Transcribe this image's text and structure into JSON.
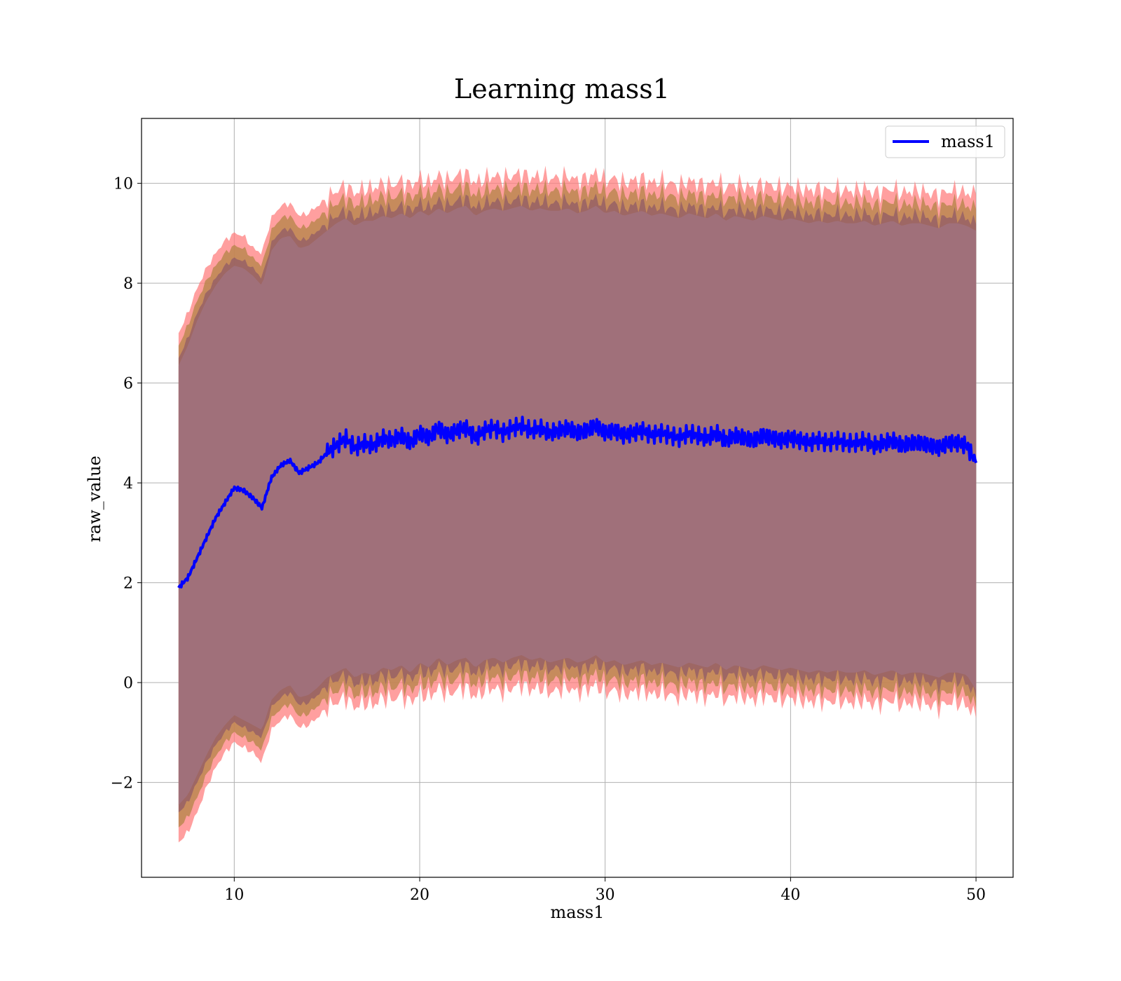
{
  "chart_data": {
    "type": "line",
    "title": "Learning mass1",
    "xlabel": "mass1",
    "ylabel": "raw_value",
    "xlim": [
      5,
      52
    ],
    "ylim": [
      -3.9,
      11.3
    ],
    "xticks": [
      10,
      20,
      30,
      40,
      50
    ],
    "yticks": [
      -2,
      0,
      2,
      4,
      6,
      8,
      10
    ],
    "grid": true,
    "legend": {
      "position": "top-right",
      "entries": [
        "mass1"
      ]
    },
    "colors": {
      "line": "#0000ff",
      "band_outer": "#ff7f7f",
      "band_mid": "#b8864b",
      "band_inner": "#7e4a6b",
      "band_core": "#a0707a"
    },
    "series": [
      {
        "name": "mass1",
        "x": [
          7,
          7.5,
          8,
          8.5,
          9,
          9.5,
          10,
          10.5,
          11,
          11.5,
          12,
          12.5,
          13,
          13.5,
          14,
          14.5,
          15,
          15.5,
          16,
          16.5,
          17,
          17.5,
          18,
          18.5,
          19,
          19.5,
          20,
          20.5,
          21,
          21.5,
          22,
          22.5,
          23,
          23.5,
          24,
          24.5,
          25,
          25.5,
          26,
          26.5,
          27,
          27.5,
          28,
          28.5,
          29,
          29.5,
          30,
          30.5,
          31,
          31.5,
          32,
          32.5,
          33,
          33.5,
          34,
          34.5,
          35,
          35.5,
          36,
          36.5,
          37,
          37.5,
          38,
          38.5,
          39,
          39.5,
          40,
          40.5,
          41,
          41.5,
          42,
          42.5,
          43,
          43.5,
          44,
          44.5,
          45,
          45.5,
          46,
          46.5,
          47,
          47.5,
          48,
          48.5,
          49,
          49.5,
          50
        ],
        "y": [
          1.9,
          2.1,
          2.5,
          2.9,
          3.3,
          3.6,
          3.9,
          3.85,
          3.7,
          3.5,
          4.1,
          4.35,
          4.45,
          4.2,
          4.3,
          4.4,
          4.6,
          4.75,
          4.9,
          4.7,
          4.8,
          4.75,
          4.9,
          4.85,
          4.95,
          4.8,
          5.0,
          4.9,
          5.1,
          4.95,
          5.05,
          5.1,
          4.9,
          5.05,
          5.1,
          5.0,
          5.1,
          5.15,
          5.05,
          5.1,
          5.0,
          5.05,
          5.1,
          5.0,
          5.05,
          5.15,
          5.0,
          5.05,
          4.95,
          5.0,
          5.05,
          4.95,
          5.0,
          4.95,
          4.9,
          5.0,
          4.95,
          4.9,
          5.0,
          4.85,
          4.95,
          4.9,
          4.85,
          4.95,
          4.9,
          4.85,
          4.9,
          4.85,
          4.8,
          4.85,
          4.8,
          4.85,
          4.8,
          4.8,
          4.85,
          4.75,
          4.8,
          4.85,
          4.75,
          4.8,
          4.8,
          4.75,
          4.7,
          4.8,
          4.8,
          4.75,
          4.4
        ]
      }
    ],
    "bands": {
      "outer_upper": [
        7.0,
        7.4,
        7.9,
        8.3,
        8.6,
        8.85,
        9.0,
        8.95,
        8.7,
        8.6,
        9.3,
        9.55,
        9.6,
        9.35,
        9.4,
        9.55,
        9.7,
        9.85,
        9.95,
        9.8,
        9.9,
        9.9,
        10.0,
        9.95,
        10.05,
        9.95,
        10.1,
        10.0,
        10.15,
        10.05,
        10.15,
        10.2,
        10.0,
        10.1,
        10.15,
        10.1,
        10.15,
        10.2,
        10.1,
        10.15,
        10.1,
        10.1,
        10.15,
        10.05,
        10.1,
        10.2,
        10.05,
        10.1,
        10.0,
        10.05,
        10.1,
        10.0,
        10.05,
        10.0,
        9.95,
        10.05,
        10.0,
        9.95,
        10.05,
        9.9,
        10.0,
        9.95,
        9.9,
        10.0,
        9.95,
        9.9,
        9.95,
        9.9,
        9.85,
        9.9,
        9.85,
        9.9,
        9.85,
        9.85,
        9.9,
        9.8,
        9.85,
        9.9,
        9.8,
        9.85,
        9.85,
        9.8,
        9.75,
        9.85,
        9.85,
        9.8,
        9.8
      ],
      "outer_lower": [
        -3.2,
        -3.0,
        -2.6,
        -2.1,
        -1.7,
        -1.4,
        -1.2,
        -1.3,
        -1.4,
        -1.6,
        -0.95,
        -0.75,
        -0.65,
        -0.9,
        -0.85,
        -0.7,
        -0.5,
        -0.4,
        -0.3,
        -0.5,
        -0.4,
        -0.45,
        -0.3,
        -0.35,
        -0.25,
        -0.4,
        -0.2,
        -0.3,
        -0.1,
        -0.25,
        -0.15,
        -0.1,
        -0.3,
        -0.15,
        -0.1,
        -0.2,
        -0.1,
        -0.05,
        -0.15,
        -0.1,
        -0.2,
        -0.15,
        -0.1,
        -0.2,
        -0.15,
        -0.05,
        -0.2,
        -0.15,
        -0.25,
        -0.2,
        -0.15,
        -0.25,
        -0.2,
        -0.25,
        -0.3,
        -0.2,
        -0.25,
        -0.3,
        -0.2,
        -0.35,
        -0.25,
        -0.3,
        -0.35,
        -0.25,
        -0.3,
        -0.35,
        -0.3,
        -0.35,
        -0.4,
        -0.35,
        -0.4,
        -0.35,
        -0.4,
        -0.4,
        -0.35,
        -0.45,
        -0.4,
        -0.35,
        -0.45,
        -0.4,
        -0.4,
        -0.45,
        -0.5,
        -0.4,
        -0.4,
        -0.45,
        -0.7
      ],
      "inner_upper": [
        6.5,
        6.9,
        7.4,
        7.8,
        8.1,
        8.35,
        8.5,
        8.45,
        8.3,
        8.1,
        8.8,
        9.05,
        9.1,
        8.85,
        8.9,
        9.05,
        9.2,
        9.35,
        9.45,
        9.3,
        9.4,
        9.4,
        9.5,
        9.45,
        9.55,
        9.45,
        9.6,
        9.5,
        9.65,
        9.55,
        9.65,
        9.7,
        9.5,
        9.6,
        9.65,
        9.6,
        9.65,
        9.7,
        9.6,
        9.65,
        9.6,
        9.6,
        9.65,
        9.55,
        9.6,
        9.7,
        9.55,
        9.6,
        9.5,
        9.55,
        9.6,
        9.5,
        9.55,
        9.5,
        9.45,
        9.55,
        9.5,
        9.45,
        9.55,
        9.4,
        9.5,
        9.45,
        9.4,
        9.5,
        9.45,
        9.4,
        9.45,
        9.4,
        9.35,
        9.4,
        9.35,
        9.4,
        9.35,
        9.35,
        9.4,
        9.3,
        9.35,
        9.4,
        9.3,
        9.35,
        9.35,
        9.3,
        9.25,
        9.35,
        9.35,
        9.3,
        9.2
      ],
      "inner_lower": [
        -2.6,
        -2.4,
        -2.0,
        -1.6,
        -1.25,
        -1.0,
        -0.8,
        -0.9,
        -1.0,
        -1.1,
        -0.5,
        -0.3,
        -0.2,
        -0.45,
        -0.4,
        -0.25,
        -0.05,
        0.05,
        0.15,
        -0.05,
        0.05,
        0.0,
        0.15,
        0.1,
        0.2,
        0.05,
        0.25,
        0.15,
        0.35,
        0.2,
        0.3,
        0.35,
        0.15,
        0.3,
        0.35,
        0.25,
        0.35,
        0.4,
        0.3,
        0.35,
        0.25,
        0.3,
        0.35,
        0.25,
        0.3,
        0.4,
        0.25,
        0.3,
        0.2,
        0.25,
        0.3,
        0.2,
        0.25,
        0.2,
        0.15,
        0.25,
        0.2,
        0.15,
        0.25,
        0.1,
        0.2,
        0.15,
        0.1,
        0.2,
        0.15,
        0.1,
        0.15,
        0.1,
        0.05,
        0.1,
        0.05,
        0.1,
        0.05,
        0.05,
        0.1,
        0.0,
        0.05,
        0.1,
        0.0,
        0.05,
        0.05,
        0.0,
        -0.05,
        0.05,
        0.05,
        0.0,
        -0.3
      ]
    }
  }
}
